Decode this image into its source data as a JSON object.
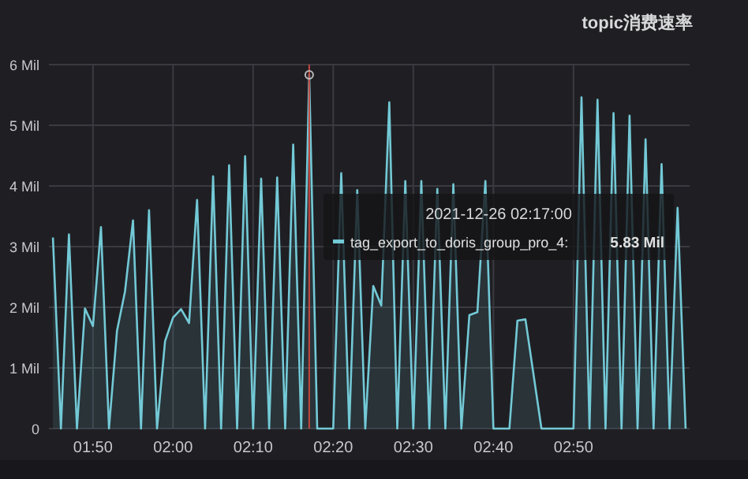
{
  "chart_data": {
    "type": "area",
    "title": "topic消费速率",
    "x": [
      "2021-12-26T01:45",
      "2021-12-26T01:46",
      "2021-12-26T01:47",
      "2021-12-26T01:48",
      "2021-12-26T01:49",
      "2021-12-26T01:50",
      "2021-12-26T01:51",
      "2021-12-26T01:52",
      "2021-12-26T01:53",
      "2021-12-26T01:54",
      "2021-12-26T01:55",
      "2021-12-26T01:56",
      "2021-12-26T01:57",
      "2021-12-26T01:58",
      "2021-12-26T01:59",
      "2021-12-26T02:00",
      "2021-12-26T02:01",
      "2021-12-26T02:02",
      "2021-12-26T02:03",
      "2021-12-26T02:04",
      "2021-12-26T02:05",
      "2021-12-26T02:06",
      "2021-12-26T02:07",
      "2021-12-26T02:08",
      "2021-12-26T02:09",
      "2021-12-26T02:10",
      "2021-12-26T02:11",
      "2021-12-26T02:12",
      "2021-12-26T02:13",
      "2021-12-26T02:14",
      "2021-12-26T02:15",
      "2021-12-26T02:16",
      "2021-12-26T02:17",
      "2021-12-26T02:18",
      "2021-12-26T02:20",
      "2021-12-26T02:21",
      "2021-12-26T02:22",
      "2021-12-26T02:23",
      "2021-12-26T02:24",
      "2021-12-26T02:25",
      "2021-12-26T02:26",
      "2021-12-26T02:27",
      "2021-12-26T02:28",
      "2021-12-26T02:29",
      "2021-12-26T02:30",
      "2021-12-26T02:31",
      "2021-12-26T02:32",
      "2021-12-26T02:33",
      "2021-12-26T02:34",
      "2021-12-26T02:35",
      "2021-12-26T02:36",
      "2021-12-26T02:37",
      "2021-12-26T02:38",
      "2021-12-26T02:39",
      "2021-12-26T02:40",
      "2021-12-26T02:42",
      "2021-12-26T02:43",
      "2021-12-26T02:44",
      "2021-12-26T02:46",
      "2021-12-26T02:48",
      "2021-12-26T02:50",
      "2021-12-26T02:51",
      "2021-12-26T02:52",
      "2021-12-26T02:53",
      "2021-12-26T02:54",
      "2021-12-26T02:55",
      "2021-12-26T02:56",
      "2021-12-26T02:57",
      "2021-12-26T02:58",
      "2021-12-26T02:59",
      "2021-12-26T03:00",
      "2021-12-26T03:01",
      "2021-12-26T03:02",
      "2021-12-26T03:03",
      "2021-12-26T03:04"
    ],
    "series": [
      {
        "name": "tag_export_to_doris_group_pro_4:",
        "color": "#73c9d6",
        "values": [
          3.15,
          0,
          3.2,
          0,
          1.98,
          1.69,
          3.32,
          0,
          1.61,
          2.26,
          3.43,
          0,
          3.6,
          0,
          1.44,
          1.83,
          1.97,
          1.74,
          3.77,
          0,
          4.16,
          0,
          4.34,
          0,
          4.49,
          0,
          4.12,
          0,
          4.14,
          0,
          4.68,
          0,
          5.83,
          0,
          0,
          4.21,
          0,
          3.93,
          0,
          2.35,
          2.03,
          5.38,
          0,
          4.08,
          0,
          4.08,
          0,
          3.95,
          0,
          4.03,
          0,
          1.87,
          1.92,
          4.08,
          0,
          0,
          1.78,
          1.8,
          0,
          0,
          0,
          5.46,
          0,
          5.42,
          0,
          5.2,
          0,
          5.16,
          0,
          4.77,
          0,
          4.36,
          0,
          3.64,
          0
        ]
      }
    ],
    "xlim": [
      "2021-12-26T01:44:30",
      "2021-12-26T03:04:30"
    ],
    "xticks": [
      {
        "value": "2021-12-26T01:50",
        "label": "01:50"
      },
      {
        "value": "2021-12-26T02:00",
        "label": "02:00"
      },
      {
        "value": "2021-12-26T02:10",
        "label": "02:10"
      },
      {
        "value": "2021-12-26T02:20",
        "label": "02:20"
      },
      {
        "value": "2021-12-26T02:30",
        "label": "02:30"
      },
      {
        "value": "2021-12-26T02:40",
        "label": "02:40"
      },
      {
        "value": "2021-12-26T02:50",
        "label": "02:50"
      }
    ],
    "ylim": [
      0,
      6
    ],
    "yticks": [
      0,
      {
        "value": 1,
        "label": "1 Mil"
      },
      {
        "value": 2,
        "label": "2 Mil"
      },
      {
        "value": 3,
        "label": "3 Mil"
      },
      {
        "value": 4,
        "label": "4 Mil"
      },
      {
        "value": 5,
        "label": "5 Mil"
      },
      {
        "value": 6,
        "label": "6 Mil"
      }
    ],
    "grid": true,
    "ref_lines": [
      {
        "axis": "x",
        "value": "2021-12-26T02:17",
        "color": "#c4463f"
      }
    ],
    "annotations": [
      "2021-12-26 02:17:00",
      "5.83 Mil"
    ]
  }
}
